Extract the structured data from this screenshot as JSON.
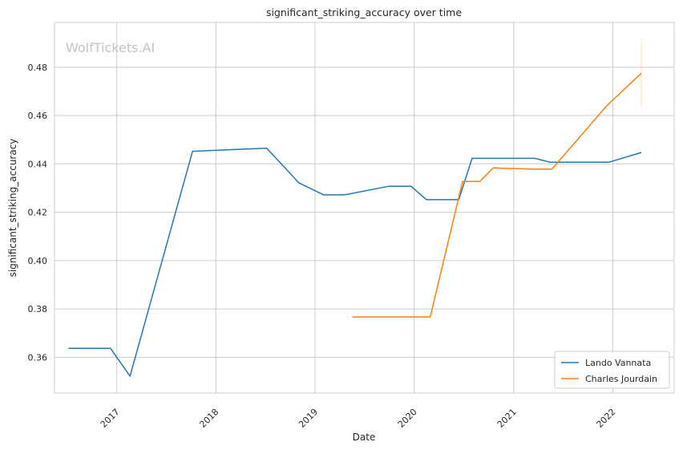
{
  "watermark": "WolfTickets.AI",
  "chart_data": {
    "type": "line",
    "title": "significant_striking_accuracy over time",
    "xlabel": "Date",
    "ylabel": "significant_striking_accuracy",
    "x_ticks": [
      "2017",
      "2018",
      "2019",
      "2020",
      "2021",
      "2022"
    ],
    "y_ticks": [
      "0.36",
      "0.38",
      "0.40",
      "0.42",
      "0.44",
      "0.46",
      "0.48"
    ],
    "xlim": [
      "2016-05-17",
      "2022-08-15"
    ],
    "ylim": [
      0.3452,
      0.4985
    ],
    "grid": true,
    "legend_position": "lower-right",
    "colors": {
      "Lando Vannata": "#1f77b4",
      "Charles Jourdain": "#ff7f0e"
    },
    "series": [
      {
        "name": "Lando Vannata",
        "x": [
          "2016-07-07",
          "2016-12-09",
          "2017-02-19",
          "2017-10-07",
          "2018-07-07",
          "2018-11-03",
          "2019-02-02",
          "2019-04-20",
          "2019-09-28",
          "2019-12-21",
          "2020-02-15",
          "2020-06-13",
          "2020-08-01",
          "2021-03-20",
          "2021-05-15",
          "2021-12-18",
          "2022-04-16"
        ],
        "y": [
          0.3637,
          0.3637,
          0.3522,
          0.4452,
          0.4465,
          0.4321,
          0.4272,
          0.4272,
          0.4307,
          0.4307,
          0.4252,
          0.4252,
          0.4423,
          0.4423,
          0.4407,
          0.4407,
          0.4447
        ]
      },
      {
        "name": "Charles Jourdain",
        "x": [
          "2019-05-18",
          "2020-02-29",
          "2020-06-27",
          "2020-08-29",
          "2020-10-18",
          "2021-03-20",
          "2021-05-22",
          "2021-12-11",
          "2022-04-16"
        ],
        "y": [
          0.3767,
          0.3767,
          0.4327,
          0.4327,
          0.4383,
          0.4378,
          0.4378,
          0.4642,
          0.4775
        ]
      }
    ]
  }
}
